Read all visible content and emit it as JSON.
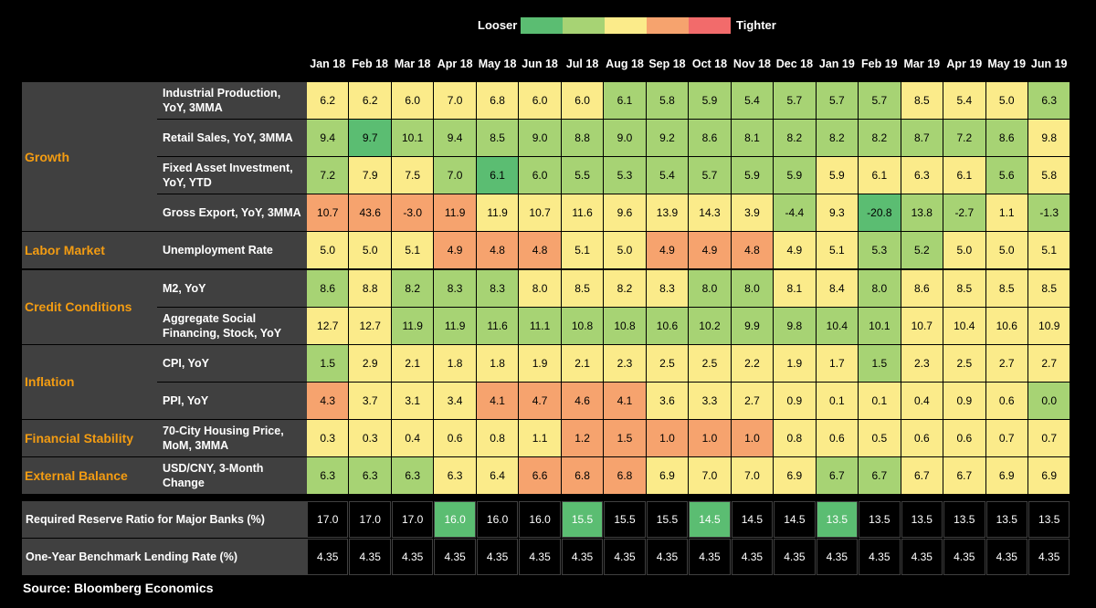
{
  "legend": {
    "left_label": "Looser",
    "right_label": "Tighter",
    "colors": [
      "#5bbd72",
      "#a7d374",
      "#fbeb8a",
      "#f6a36e",
      "#f26b6b"
    ]
  },
  "colors": {
    "green": "#5bbd72",
    "lightgreen": "#a7d374",
    "yellow": "#fbeb8a",
    "orange": "#f6a36e",
    "red": "#f26b6b",
    "policy_green": "#5bbd72",
    "policy_black": "#000000"
  },
  "chart_data": {
    "type": "table",
    "columns": [
      "Jan 18",
      "Feb 18",
      "Mar 18",
      "Apr 18",
      "May 18",
      "Jun 18",
      "Jul 18",
      "Aug 18",
      "Sep 18",
      "Oct 18",
      "Nov 18",
      "Dec 18",
      "Jan 19",
      "Feb 19",
      "Mar 19",
      "Apr 19",
      "May 19",
      "Jun 19"
    ],
    "categories": [
      {
        "name": "Growth",
        "rows": [
          {
            "label": "Industrial Production, YoY, 3MMA",
            "values": [
              "6.2",
              "6.2",
              "6.0",
              "7.0",
              "6.8",
              "6.0",
              "6.0",
              "6.1",
              "5.8",
              "5.9",
              "5.4",
              "5.7",
              "5.7",
              "5.7",
              "8.5",
              "5.4",
              "5.0",
              "6.3"
            ],
            "colors": [
              "yellow",
              "yellow",
              "yellow",
              "yellow",
              "yellow",
              "yellow",
              "yellow",
              "lightgreen",
              "lightgreen",
              "lightgreen",
              "lightgreen",
              "lightgreen",
              "lightgreen",
              "lightgreen",
              "yellow",
              "yellow",
              "yellow",
              "lightgreen"
            ]
          },
          {
            "label": "Retail Sales, YoY, 3MMA",
            "values": [
              "9.4",
              "9.7",
              "10.1",
              "9.4",
              "8.5",
              "9.0",
              "8.8",
              "9.0",
              "9.2",
              "8.6",
              "8.1",
              "8.2",
              "8.2",
              "8.2",
              "8.7",
              "7.2",
              "8.6",
              "9.8"
            ],
            "colors": [
              "lightgreen",
              "green",
              "lightgreen",
              "lightgreen",
              "lightgreen",
              "lightgreen",
              "lightgreen",
              "lightgreen",
              "lightgreen",
              "lightgreen",
              "lightgreen",
              "lightgreen",
              "lightgreen",
              "lightgreen",
              "lightgreen",
              "lightgreen",
              "lightgreen",
              "yellow"
            ]
          },
          {
            "label": "Fixed Asset Investment, YoY, YTD",
            "values": [
              "7.2",
              "7.9",
              "7.5",
              "7.0",
              "6.1",
              "6.0",
              "5.5",
              "5.3",
              "5.4",
              "5.7",
              "5.9",
              "5.9",
              "5.9",
              "6.1",
              "6.3",
              "6.1",
              "5.6",
              "5.8"
            ],
            "colors": [
              "lightgreen",
              "yellow",
              "yellow",
              "lightgreen",
              "green",
              "lightgreen",
              "lightgreen",
              "lightgreen",
              "lightgreen",
              "lightgreen",
              "lightgreen",
              "lightgreen",
              "yellow",
              "yellow",
              "yellow",
              "yellow",
              "lightgreen",
              "yellow"
            ]
          },
          {
            "label": "Gross Export, YoY, 3MMA",
            "values": [
              "10.7",
              "43.6",
              "-3.0",
              "11.9",
              "11.9",
              "10.7",
              "11.6",
              "9.6",
              "13.9",
              "14.3",
              "3.9",
              "-4.4",
              "9.3",
              "-20.8",
              "13.8",
              "-2.7",
              "1.1",
              "-1.3"
            ],
            "colors": [
              "orange",
              "orange",
              "orange",
              "orange",
              "yellow",
              "yellow",
              "yellow",
              "yellow",
              "yellow",
              "yellow",
              "yellow",
              "lightgreen",
              "yellow",
              "green",
              "lightgreen",
              "lightgreen",
              "yellow",
              "lightgreen"
            ]
          }
        ]
      },
      {
        "name": "Labor Market",
        "rows": [
          {
            "label": "Unemployment Rate",
            "values": [
              "5.0",
              "5.0",
              "5.1",
              "4.9",
              "4.8",
              "4.8",
              "5.1",
              "5.0",
              "4.9",
              "4.9",
              "4.8",
              "4.9",
              "5.1",
              "5.3",
              "5.2",
              "5.0",
              "5.0",
              "5.1"
            ],
            "colors": [
              "yellow",
              "yellow",
              "yellow",
              "orange",
              "orange",
              "orange",
              "yellow",
              "yellow",
              "orange",
              "orange",
              "orange",
              "yellow",
              "yellow",
              "lightgreen",
              "lightgreen",
              "yellow",
              "yellow",
              "yellow"
            ]
          }
        ]
      },
      {
        "name": "Credit Conditions",
        "rows": [
          {
            "label": "M2, YoY",
            "values": [
              "8.6",
              "8.8",
              "8.2",
              "8.3",
              "8.3",
              "8.0",
              "8.5",
              "8.2",
              "8.3",
              "8.0",
              "8.0",
              "8.1",
              "8.4",
              "8.0",
              "8.6",
              "8.5",
              "8.5",
              "8.5"
            ],
            "colors": [
              "lightgreen",
              "yellow",
              "lightgreen",
              "lightgreen",
              "lightgreen",
              "yellow",
              "yellow",
              "yellow",
              "yellow",
              "lightgreen",
              "lightgreen",
              "yellow",
              "yellow",
              "lightgreen",
              "yellow",
              "yellow",
              "yellow",
              "yellow"
            ]
          },
          {
            "label": "Aggregate Social Financing, Stock, YoY",
            "values": [
              "12.7",
              "12.7",
              "11.9",
              "11.9",
              "11.6",
              "11.1",
              "10.8",
              "10.8",
              "10.6",
              "10.2",
              "9.9",
              "9.8",
              "10.4",
              "10.1",
              "10.7",
              "10.4",
              "10.6",
              "10.9"
            ],
            "colors": [
              "yellow",
              "yellow",
              "lightgreen",
              "lightgreen",
              "lightgreen",
              "lightgreen",
              "lightgreen",
              "lightgreen",
              "lightgreen",
              "lightgreen",
              "lightgreen",
              "lightgreen",
              "lightgreen",
              "lightgreen",
              "yellow",
              "yellow",
              "yellow",
              "yellow"
            ]
          }
        ]
      },
      {
        "name": "Inflation",
        "rows": [
          {
            "label": "CPI, YoY",
            "values": [
              "1.5",
              "2.9",
              "2.1",
              "1.8",
              "1.8",
              "1.9",
              "2.1",
              "2.3",
              "2.5",
              "2.5",
              "2.2",
              "1.9",
              "1.7",
              "1.5",
              "2.3",
              "2.5",
              "2.7",
              "2.7"
            ],
            "colors": [
              "lightgreen",
              "yellow",
              "yellow",
              "yellow",
              "yellow",
              "yellow",
              "yellow",
              "yellow",
              "yellow",
              "yellow",
              "yellow",
              "yellow",
              "yellow",
              "lightgreen",
              "yellow",
              "yellow",
              "yellow",
              "yellow"
            ]
          },
          {
            "label": "PPI, YoY",
            "values": [
              "4.3",
              "3.7",
              "3.1",
              "3.4",
              "4.1",
              "4.7",
              "4.6",
              "4.1",
              "3.6",
              "3.3",
              "2.7",
              "0.9",
              "0.1",
              "0.1",
              "0.4",
              "0.9",
              "0.6",
              "0.0"
            ],
            "colors": [
              "orange",
              "yellow",
              "yellow",
              "yellow",
              "orange",
              "orange",
              "orange",
              "orange",
              "yellow",
              "yellow",
              "yellow",
              "yellow",
              "yellow",
              "yellow",
              "yellow",
              "yellow",
              "yellow",
              "lightgreen"
            ]
          }
        ]
      },
      {
        "name": "Financial Stability",
        "rows": [
          {
            "label": "70-City Housing Price, MoM, 3MMA",
            "values": [
              "0.3",
              "0.3",
              "0.4",
              "0.6",
              "0.8",
              "1.1",
              "1.2",
              "1.5",
              "1.0",
              "1.0",
              "1.0",
              "0.8",
              "0.6",
              "0.5",
              "0.6",
              "0.6",
              "0.7",
              "0.7"
            ],
            "colors": [
              "yellow",
              "yellow",
              "yellow",
              "yellow",
              "yellow",
              "yellow",
              "orange",
              "orange",
              "orange",
              "orange",
              "orange",
              "yellow",
              "yellow",
              "yellow",
              "yellow",
              "yellow",
              "yellow",
              "yellow"
            ]
          }
        ]
      },
      {
        "name": "External Balance",
        "rows": [
          {
            "label": "USD/CNY, 3-Month Change",
            "values": [
              "6.3",
              "6.3",
              "6.3",
              "6.3",
              "6.4",
              "6.6",
              "6.8",
              "6.8",
              "6.9",
              "7.0",
              "7.0",
              "6.9",
              "6.7",
              "6.7",
              "6.7",
              "6.7",
              "6.9",
              "6.9"
            ],
            "colors": [
              "lightgreen",
              "lightgreen",
              "lightgreen",
              "yellow",
              "yellow",
              "orange",
              "orange",
              "orange",
              "yellow",
              "yellow",
              "yellow",
              "yellow",
              "lightgreen",
              "lightgreen",
              "yellow",
              "yellow",
              "yellow",
              "yellow"
            ]
          }
        ]
      }
    ],
    "policy_rows": [
      {
        "label": "Required Reserve Ratio for Major Banks (%)",
        "values": [
          "17.0",
          "17.0",
          "17.0",
          "16.0",
          "16.0",
          "16.0",
          "15.5",
          "15.5",
          "15.5",
          "14.5",
          "14.5",
          "14.5",
          "13.5",
          "13.5",
          "13.5",
          "13.5",
          "13.5",
          "13.5"
        ],
        "colors": [
          "policy_black",
          "policy_black",
          "policy_black",
          "policy_green",
          "policy_black",
          "policy_black",
          "policy_green",
          "policy_black",
          "policy_black",
          "policy_green",
          "policy_black",
          "policy_black",
          "policy_green",
          "policy_black",
          "policy_black",
          "policy_black",
          "policy_black",
          "policy_black"
        ]
      },
      {
        "label": "One-Year Benchmark Lending Rate (%)",
        "values": [
          "4.35",
          "4.35",
          "4.35",
          "4.35",
          "4.35",
          "4.35",
          "4.35",
          "4.35",
          "4.35",
          "4.35",
          "4.35",
          "4.35",
          "4.35",
          "4.35",
          "4.35",
          "4.35",
          "4.35",
          "4.35"
        ],
        "colors": [
          "policy_black",
          "policy_black",
          "policy_black",
          "policy_black",
          "policy_black",
          "policy_black",
          "policy_black",
          "policy_black",
          "policy_black",
          "policy_black",
          "policy_black",
          "policy_black",
          "policy_black",
          "policy_black",
          "policy_black",
          "policy_black",
          "policy_black",
          "policy_black"
        ]
      }
    ]
  },
  "source": "Source: Bloomberg Economics"
}
